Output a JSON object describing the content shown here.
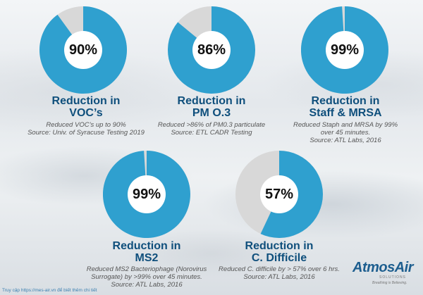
{
  "chart_data": [
    {
      "type": "pie",
      "percent": 90,
      "label": "90%",
      "title_lines": [
        "Reduction in",
        "VOC’s"
      ],
      "note_lines": [
        "Reduced VOC’s up to 90%",
        "Source: Univ. of Syracuse Testing 2019"
      ]
    },
    {
      "type": "pie",
      "percent": 86,
      "label": "86%",
      "title_lines": [
        "Reduction in",
        "PM O.3"
      ],
      "note_lines": [
        "Reduced >86% of PM0.3 particulate",
        "Source: ETL CADR Testing"
      ]
    },
    {
      "type": "pie",
      "percent": 99,
      "label": "99%",
      "title_lines": [
        "Reduction in",
        "Staff & MRSA"
      ],
      "note_lines": [
        "Reduced Staph and MRSA by 99%",
        "over 45 minutes.",
        "Source: ATL Labs, 2016"
      ]
    },
    {
      "type": "pie",
      "percent": 99,
      "label": "99%",
      "title_lines": [
        "Reduction in",
        "MS2"
      ],
      "note_lines": [
        "Reduced MS2 Bacteriophage (Norovirus",
        "Surrogate) by >99% over 45 minutes.",
        "Source: ATL Labs, 2016"
      ]
    },
    {
      "type": "pie",
      "percent": 57,
      "label": "57%",
      "title_lines": [
        "Reduction in",
        "C. Difficile"
      ],
      "note_lines": [
        "Reduced C. difficile by > 57% over 6 hrs.",
        "Source: ATL Labs, 2016"
      ]
    }
  ],
  "colors": {
    "filled": "#2fa0cf",
    "remaining": "#d8d8d8",
    "title": "#0f4f7c"
  },
  "footer_text": "Truy cập https://mes-air.vn để biết thêm chi tiết",
  "logo": {
    "brand": "AtmosAir",
    "sub": "SOLUTIONS",
    "tagline": "Breathing is Believing."
  }
}
